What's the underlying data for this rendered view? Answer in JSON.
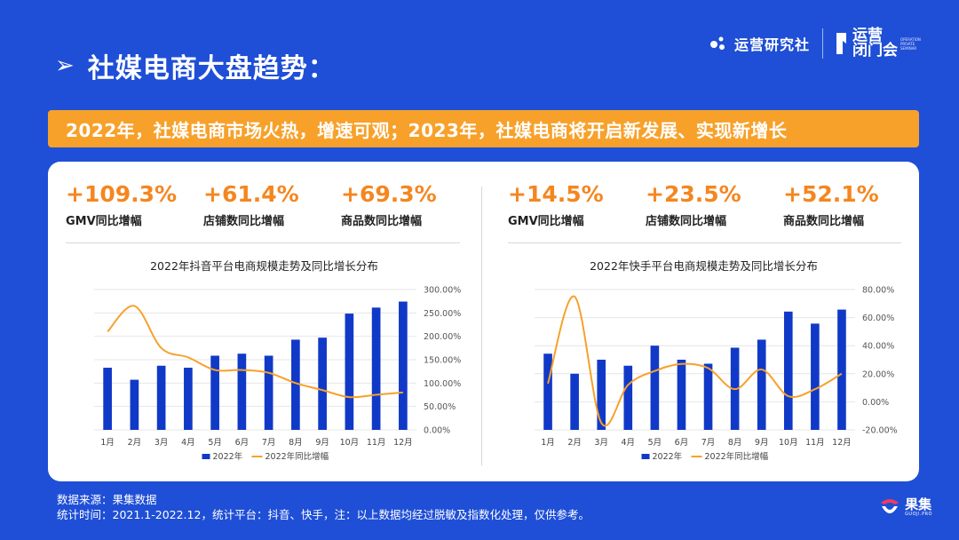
{
  "page": {
    "title": "社媒电商大盘趋势：",
    "banner": "2022年，社媒电商市场火热，增速可观；2023年，社媒电商将开启新发展、实现新增长"
  },
  "brand": {
    "logo1": "运营研究社",
    "logo2": "运营",
    "logo2b": "闭门会",
    "logo2_small": "OPERATION PRIVATE SEMINAR"
  },
  "left_stats": [
    {
      "value": "+109.3%",
      "label": "GMV同比增幅"
    },
    {
      "value": "+61.4%",
      "label": "店铺数同比增幅"
    },
    {
      "value": "+69.3%",
      "label": "商品数同比增幅"
    }
  ],
  "right_stats": [
    {
      "value": "+14.5%",
      "label": "GMV同比增幅"
    },
    {
      "value": "+23.5%",
      "label": "店铺数同比增幅"
    },
    {
      "value": "+52.1%",
      "label": "商品数同比增幅"
    }
  ],
  "colors": {
    "bar": "#1139C8",
    "line": "#F7A12B",
    "accent": "#F5861F"
  },
  "chart_data": [
    {
      "type": "bar",
      "title": "2022年抖音平台电商规模走势及同比增长分布",
      "categories": [
        "1月",
        "2月",
        "3月",
        "4月",
        "5月",
        "6月",
        "7月",
        "8月",
        "9月",
        "10月",
        "11月",
        "12月"
      ],
      "series": [
        {
          "name": "2022年",
          "type": "bar",
          "axis": "left",
          "values": [
            31,
            25,
            32,
            31,
            37,
            38,
            37,
            45,
            46,
            58,
            61,
            64
          ]
        },
        {
          "name": "2022年同比增幅",
          "type": "line",
          "axis": "right",
          "values": [
            210,
            265,
            175,
            155,
            128,
            128,
            122,
            100,
            85,
            70,
            75,
            80
          ]
        }
      ],
      "right_axis": {
        "min": 0,
        "max": 300,
        "ticks": [
          "300.00%",
          "250.00%",
          "200.00%",
          "150.00%",
          "100.00%",
          "50.00%",
          "0.00%"
        ]
      },
      "left_axis_max": 70,
      "legend": [
        "2022年",
        "2022年同比增幅"
      ]
    },
    {
      "type": "bar",
      "title": "2022年快手平台电商规模走势及同比增长分布",
      "categories": [
        "1月",
        "2月",
        "3月",
        "4月",
        "5月",
        "6月",
        "7月",
        "8月",
        "9月",
        "10月",
        "11月",
        "12月"
      ],
      "series": [
        {
          "name": "2022年",
          "type": "bar",
          "axis": "left",
          "values": [
            38,
            28,
            35,
            32,
            42,
            35,
            33,
            41,
            45,
            59,
            53,
            60
          ]
        },
        {
          "name": "2022年同比增幅",
          "type": "line",
          "axis": "right",
          "values": [
            13,
            75,
            -15,
            12,
            22,
            27,
            24,
            9,
            23,
            4,
            9,
            20
          ]
        }
      ],
      "right_axis": {
        "min": -20,
        "max": 80,
        "ticks": [
          "80.00%",
          "60.00%",
          "40.00%",
          "20.00%",
          "0.00%",
          "-20.00%"
        ]
      },
      "left_axis_max": 70,
      "legend": [
        "2022年",
        "2022年同比增幅"
      ]
    }
  ],
  "footer": {
    "line1": "数据来源：果集数据",
    "line2": "统计时间：2021.1-2022.12，统计平台：抖音、快手，注：以上数据均经过脱敏及指数化处理，仅供参考。"
  },
  "footer_brand": {
    "name": "果集",
    "sub": "GUOJI.PRO"
  }
}
